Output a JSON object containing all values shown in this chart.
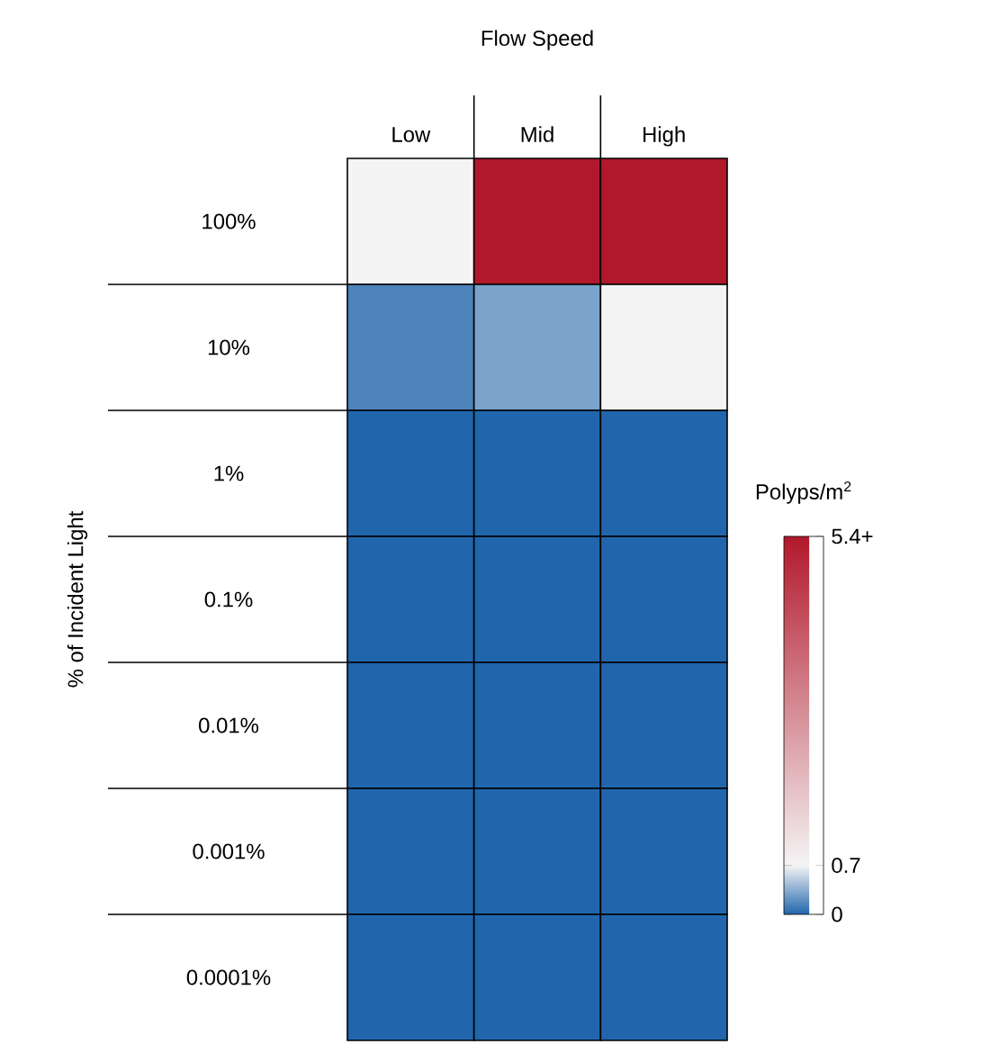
{
  "chart_data": {
    "type": "heatmap",
    "title": "Flow Speed",
    "ylabel": "% of Incident Light",
    "clabel": "Polyps/m$^{2}$",
    "categories": [
      "Low",
      "Mid",
      "High"
    ],
    "y_categories": [
      "100%",
      "10%",
      "1%",
      "0.1%",
      "0.01%",
      "0.001%",
      "0.0001%"
    ],
    "cells": [
      [
        0.7,
        5.4,
        5.4
      ],
      [
        0.15,
        0.3,
        0.7
      ],
      [
        0,
        0,
        0
      ],
      [
        0,
        0,
        0
      ],
      [
        0,
        0,
        0
      ],
      [
        0,
        0,
        0
      ],
      [
        0,
        0,
        0
      ]
    ],
    "clim": [
      0,
      5.4
    ],
    "cticks": [
      0,
      0.7,
      {
        "value": 5.4,
        "label": "5.4+"
      }
    ],
    "colors": [
      "#2166ac",
      "#f4f4f4",
      "#b2182b"
    ]
  }
}
